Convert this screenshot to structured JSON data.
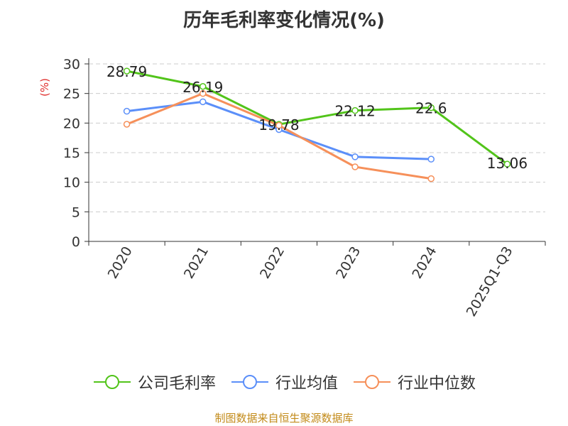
{
  "title": "历年毛利率变化情况(%)",
  "source": "制图数据来自恒生聚源数据库",
  "chart_data": {
    "type": "line",
    "title": "历年毛利率变化情况(%)",
    "ylabel": "(%)",
    "xlabel": "",
    "categories": [
      "2020",
      "2021",
      "2022",
      "2023",
      "2024",
      "2025Q1-Q3"
    ],
    "ylim": [
      0,
      30
    ],
    "yticks": [
      0,
      5,
      10,
      15,
      20,
      25,
      30
    ],
    "grid": true,
    "legend_position": "bottom",
    "series": [
      {
        "name": "公司毛利率",
        "color": "#52c41a",
        "values": [
          28.79,
          26.19,
          19.78,
          22.12,
          22.6,
          13.06
        ],
        "labels": [
          "28.79",
          "26.19",
          "19.78",
          "22.12",
          "22.6",
          "13.06"
        ]
      },
      {
        "name": "行业均值",
        "color": "#5b8ff9",
        "values": [
          22.0,
          23.6,
          18.9,
          14.3,
          13.9,
          null
        ]
      },
      {
        "name": "行业中位数",
        "color": "#f6905a",
        "values": [
          19.8,
          25.0,
          19.6,
          12.6,
          10.6,
          null
        ]
      }
    ]
  }
}
